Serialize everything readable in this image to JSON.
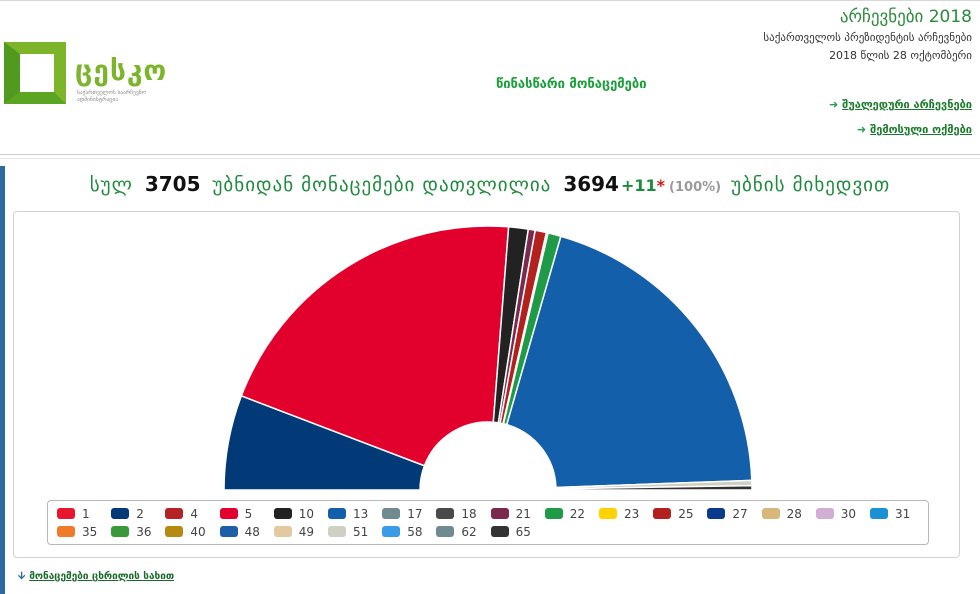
{
  "header": {
    "logo_text": "ცესკო",
    "logo_subtitle": "საქართველოს საარჩევნო ადმინისტრაცია",
    "title": "არჩევნები 2018",
    "subtitle": "საქართველოს პრეზიდენტის არჩევნები",
    "date": "2018 წლის 28 ოქტომბერი",
    "prelim": "წინასწარი მონაცემები",
    "links": [
      "შუალედური არჩევნები",
      "შემოსული ოქმები"
    ]
  },
  "stats": {
    "total_label": "სულ",
    "total": "3705",
    "counted_label": "უბნიდან მონაცემები დათვლილია",
    "counted": "3694",
    "plus": "+11",
    "star": "*",
    "percent": "(100%)",
    "by_label": "უბნის მიხედვით"
  },
  "chart_data": {
    "type": "pie",
    "shape": "semicircle-donut",
    "slices": [
      {
        "label": "2",
        "value": 10.97,
        "color": "#023a78"
      },
      {
        "label": "5",
        "value": 38.64,
        "color": "#e2002c"
      },
      {
        "label": "10",
        "value": 2.26,
        "color": "#222222"
      },
      {
        "label": "21",
        "value": 0.8,
        "color": "#7b2a4d"
      },
      {
        "label": "25",
        "value": 1.3,
        "color": "#b3211f"
      },
      {
        "label": "17",
        "value": 0.2,
        "color": "#6f8b8f"
      },
      {
        "label": "22",
        "value": 1.5,
        "color": "#1f9b47"
      },
      {
        "label": "13",
        "value": 37.74,
        "color": "#145fa9"
      },
      {
        "label": "51",
        "value": 0.6,
        "color": "#cfcfc3"
      },
      {
        "label": "65",
        "value": 0.5,
        "color": "#333333"
      }
    ]
  },
  "legend": [
    {
      "label": "1",
      "color": "#e8152e"
    },
    {
      "label": "2",
      "color": "#023a78"
    },
    {
      "label": "4",
      "color": "#b52226"
    },
    {
      "label": "5",
      "color": "#e2002c"
    },
    {
      "label": "10",
      "color": "#222222"
    },
    {
      "label": "13",
      "color": "#145fa9"
    },
    {
      "label": "17",
      "color": "#6f8b8f"
    },
    {
      "label": "18",
      "color": "#4a4a4a"
    },
    {
      "label": "21",
      "color": "#7b2a4d"
    },
    {
      "label": "22",
      "color": "#1f9b47"
    },
    {
      "label": "23",
      "color": "#ffd200"
    },
    {
      "label": "25",
      "color": "#b3211f"
    },
    {
      "label": "27",
      "color": "#0a3a8c"
    },
    {
      "label": "28",
      "color": "#d9b77a"
    },
    {
      "label": "30",
      "color": "#d3aed4"
    },
    {
      "label": "31",
      "color": "#1b91d5"
    },
    {
      "label": "35",
      "color": "#f07a2a"
    },
    {
      "label": "36",
      "color": "#3a9a3a"
    },
    {
      "label": "40",
      "color": "#b58a10"
    },
    {
      "label": "48",
      "color": "#1e5ea6"
    },
    {
      "label": "49",
      "color": "#e3c9a0"
    },
    {
      "label": "51",
      "color": "#cfcfc3"
    },
    {
      "label": "58",
      "color": "#3a9be6"
    },
    {
      "label": "62",
      "color": "#6f8b8f"
    },
    {
      "label": "65",
      "color": "#333333"
    }
  ],
  "bottom_link": "მონაცემები ცხრილის სახით"
}
